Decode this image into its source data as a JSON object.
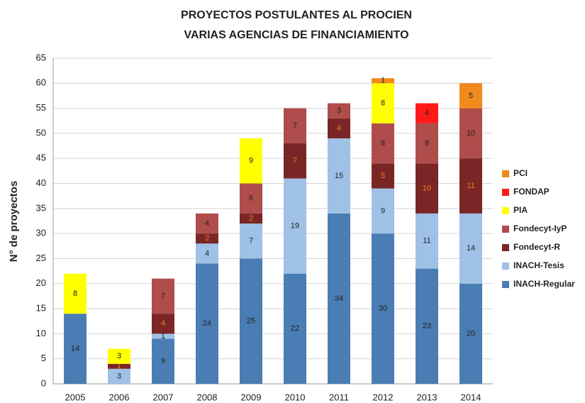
{
  "chart_data": {
    "type": "stacked_bar",
    "title": [
      "PROYECTOS POSTULANTES AL PROCIEN",
      "VARIAS AGENCIAS DE FINANCIAMIENTO"
    ],
    "y_label": "N° de proyectos",
    "categories": [
      "2005",
      "2006",
      "2007",
      "2008",
      "2009",
      "2010",
      "2011",
      "2012",
      "2013",
      "2014"
    ],
    "series": [
      {
        "name": "INACH-Regular",
        "color": "#4a7db3",
        "values": [
          14,
          null,
          9,
          24,
          25,
          22,
          34,
          30,
          23,
          20
        ]
      },
      {
        "name": "INACH-Tesis",
        "color": "#9fc1e6",
        "values": [
          null,
          3,
          1,
          4,
          7,
          19,
          15,
          9,
          11,
          14
        ]
      },
      {
        "name": "Fondecyt-R",
        "color": "#7a2626",
        "values": [
          null,
          1,
          4,
          2,
          2,
          7,
          4,
          5,
          10,
          11
        ]
      },
      {
        "name": "Fondecyt-IyP",
        "color": "#ae4d4b",
        "values": [
          null,
          null,
          7,
          4,
          6,
          7,
          3,
          8,
          8,
          10
        ]
      },
      {
        "name": "PIA",
        "color": "#ffff00",
        "values": [
          8,
          3,
          null,
          null,
          9,
          null,
          null,
          8,
          null,
          null
        ]
      },
      {
        "name": "FONDAP",
        "color": "#ff1a1a",
        "values": [
          null,
          null,
          null,
          null,
          null,
          null,
          null,
          null,
          4,
          null
        ]
      },
      {
        "name": "PCI",
        "color": "#f08a1c",
        "values": [
          null,
          null,
          null,
          null,
          null,
          null,
          null,
          1,
          null,
          5
        ]
      }
    ],
    "ylim": [
      0,
      65
    ],
    "yticks": [
      0,
      5,
      10,
      15,
      20,
      25,
      30,
      35,
      40,
      45,
      50,
      55,
      60,
      65
    ],
    "grid": true,
    "legend": "right"
  }
}
